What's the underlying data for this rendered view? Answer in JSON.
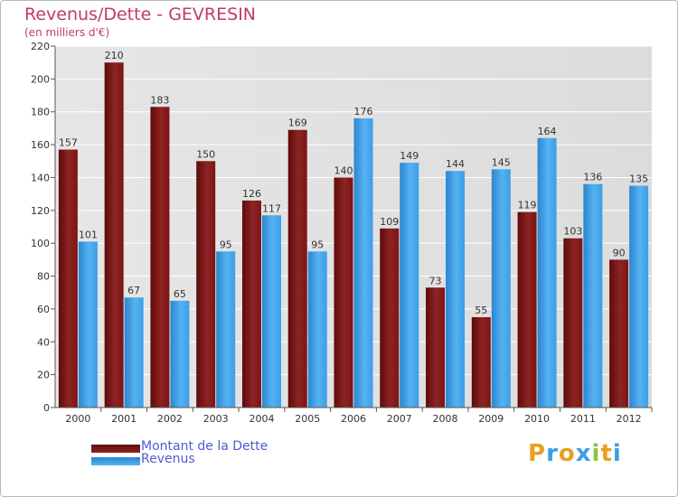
{
  "chart_data": {
    "type": "bar",
    "title": "Revenus/Dette - GEVRESIN",
    "subtitle": "(en milliers d'€)",
    "categories": [
      "2000",
      "2001",
      "2002",
      "2003",
      "2004",
      "2005",
      "2006",
      "2007",
      "2008",
      "2009",
      "2010",
      "2011",
      "2012"
    ],
    "series": [
      {
        "name": "Montant de la Dette",
        "values": [
          157,
          210,
          183,
          150,
          126,
          169,
          140,
          109,
          73,
          55,
          119,
          103,
          90
        ],
        "color": "#8b1a1a"
      },
      {
        "name": "Revenus",
        "values": [
          101,
          67,
          65,
          95,
          117,
          95,
          176,
          149,
          144,
          145,
          164,
          136,
          135
        ],
        "color": "#3a9ee8"
      }
    ],
    "ylim": [
      0,
      220
    ],
    "yticks": [
      0,
      20,
      40,
      60,
      80,
      100,
      120,
      140,
      160,
      180,
      200,
      220
    ],
    "grid": true,
    "legend_position": "bottom-left",
    "background_color": "#e8e8e8",
    "title_color": "#c03a6a",
    "legend_text_color": "#4d5bd6"
  },
  "logo": {
    "letters": [
      "P",
      "r",
      "o",
      "x",
      "i",
      "t",
      "i"
    ],
    "colors": [
      "#e8a020",
      "#3a9ee8",
      "#e8a020",
      "#3a9ee8",
      "#8cc63f",
      "#e8a020",
      "#3a9ee8"
    ]
  }
}
